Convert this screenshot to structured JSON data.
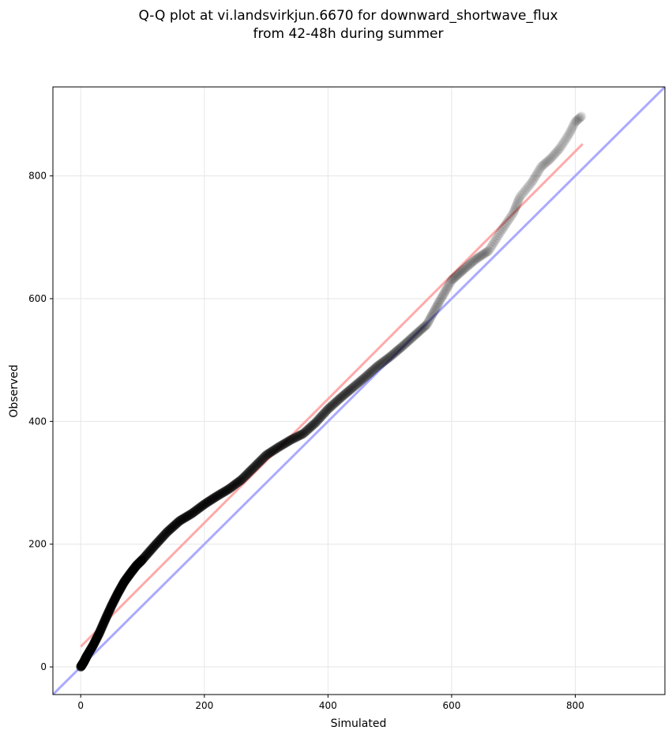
{
  "chart_data": {
    "type": "scatter",
    "title_lines": [
      "Q-Q plot at vi.landsvirkjun.6670 for downward_shortwave_flux",
      "from 42-48h during summer"
    ],
    "xlabel": "Simulated",
    "ylabel": "Observed",
    "xlim": [
      -45,
      945
    ],
    "ylim": [
      -45,
      945
    ],
    "xticks": [
      "0",
      "200",
      "400",
      "600",
      "800"
    ],
    "yticks": [
      "0",
      "200",
      "400",
      "600",
      "800"
    ],
    "tick_values": [
      0,
      200,
      400,
      600,
      800
    ],
    "grid": true,
    "quantile_curve": [
      [
        0,
        0
      ],
      [
        5,
        8
      ],
      [
        10,
        18
      ],
      [
        20,
        35
      ],
      [
        30,
        55
      ],
      [
        40,
        78
      ],
      [
        50,
        100
      ],
      [
        60,
        120
      ],
      [
        70,
        138
      ],
      [
        80,
        152
      ],
      [
        90,
        165
      ],
      [
        100,
        175
      ],
      [
        120,
        198
      ],
      [
        140,
        220
      ],
      [
        160,
        238
      ],
      [
        180,
        250
      ],
      [
        200,
        265
      ],
      [
        220,
        278
      ],
      [
        240,
        290
      ],
      [
        260,
        305
      ],
      [
        280,
        325
      ],
      [
        300,
        345
      ],
      [
        320,
        358
      ],
      [
        340,
        370
      ],
      [
        360,
        380
      ],
      [
        380,
        398
      ],
      [
        400,
        420
      ],
      [
        420,
        438
      ],
      [
        440,
        455
      ],
      [
        460,
        472
      ],
      [
        480,
        490
      ],
      [
        500,
        505
      ],
      [
        520,
        522
      ],
      [
        540,
        540
      ],
      [
        560,
        558
      ],
      [
        580,
        595
      ],
      [
        600,
        630
      ],
      [
        620,
        648
      ],
      [
        640,
        665
      ],
      [
        660,
        678
      ],
      [
        680,
        710
      ],
      [
        700,
        740
      ],
      [
        710,
        765
      ],
      [
        730,
        790
      ],
      [
        745,
        815
      ],
      [
        760,
        828
      ],
      [
        775,
        845
      ],
      [
        790,
        868
      ],
      [
        800,
        888
      ],
      [
        810,
        897
      ]
    ],
    "identity_line": {
      "color": "#aaaaff",
      "from": [
        -45,
        -45
      ],
      "to": [
        945,
        945
      ]
    },
    "fit_line": {
      "color": "#ffaaaa",
      "from": [
        0,
        33
      ],
      "to": [
        812,
        852
      ]
    },
    "point_color": "#000000"
  }
}
